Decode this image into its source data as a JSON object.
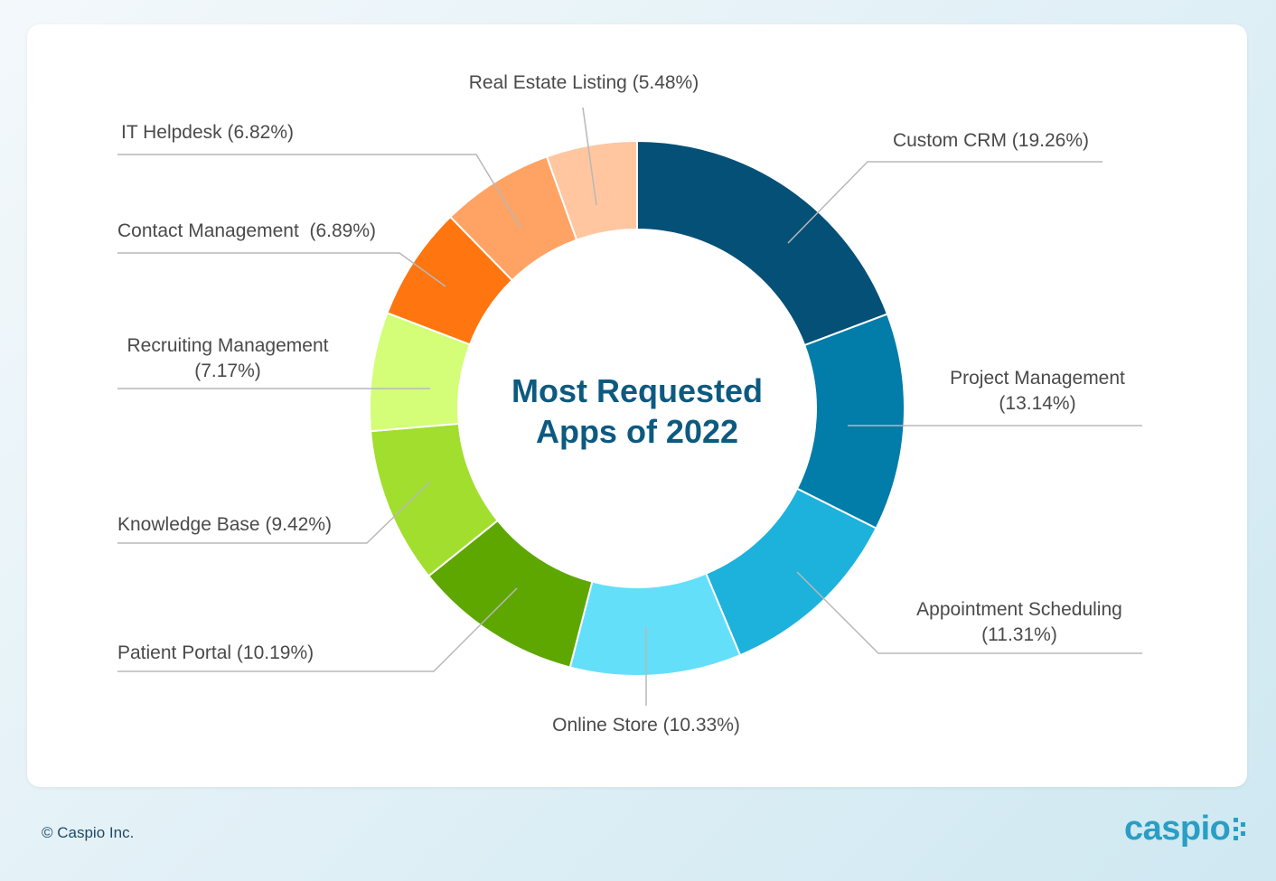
{
  "chart_data": {
    "type": "pie",
    "variant": "donut",
    "title": "Most Requested Apps of 2022",
    "title_lines": [
      "Most Requested",
      "Apps of 2022"
    ],
    "slices": [
      {
        "label": "Custom CRM (19.26%)",
        "lines": [
          "Custom CRM (19.26%)"
        ],
        "value": 19.26,
        "color": "#055077"
      },
      {
        "label": "Project Management (13.14%)",
        "lines": [
          "Project Management",
          "(13.14%)"
        ],
        "value": 13.14,
        "color": "#027ca8"
      },
      {
        "label": "Appointment Scheduling (11.31%)",
        "lines": [
          "Appointment Scheduling",
          "(11.31%)"
        ],
        "value": 11.31,
        "color": "#1db2dc"
      },
      {
        "label": "Online Store (10.33%)",
        "lines": [
          "Online Store (10.33%)"
        ],
        "value": 10.33,
        "color": "#64dffa"
      },
      {
        "label": "Patient Portal (10.19%)",
        "lines": [
          "Patient Portal (10.19%)"
        ],
        "value": 10.19,
        "color": "#5da700"
      },
      {
        "label": "Knowledge Base (9.42%)",
        "lines": [
          "Knowledge Base (9.42%)"
        ],
        "value": 9.42,
        "color": "#a1de2e"
      },
      {
        "label": "Recruiting Management (7.17%)",
        "lines": [
          "Recruiting Management",
          "(7.17%)"
        ],
        "value": 7.17,
        "color": "#d4fd78"
      },
      {
        "label": "Contact Management (6.89%)",
        "lines": [
          "Contact Management  (6.89%)"
        ],
        "value": 6.89,
        "color": "#ff7510"
      },
      {
        "label": "IT Helpdesk (6.82%)",
        "lines": [
          "IT Helpdesk (6.82%)"
        ],
        "value": 6.82,
        "color": "#ffa365"
      },
      {
        "label": "Real Estate Listing (5.48%)",
        "lines": [
          "Real Estate Listing (5.48%)"
        ],
        "value": 5.48,
        "color": "#ffc6a0"
      }
    ]
  },
  "footer": {
    "copyright": "Caspio Inc."
  },
  "logo": {
    "text": "caspio"
  }
}
